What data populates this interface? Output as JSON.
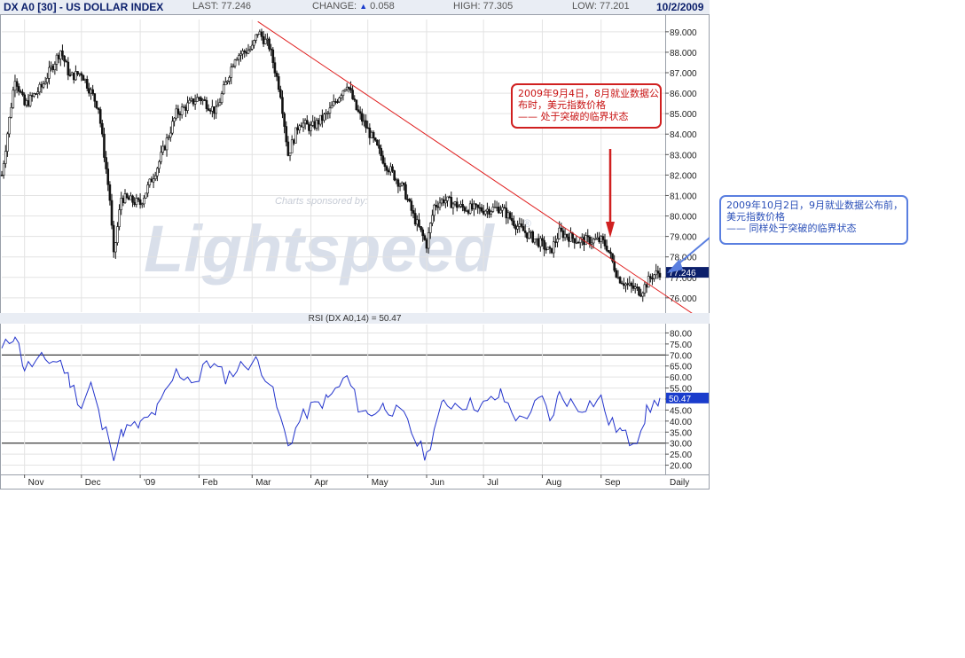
{
  "header": {
    "symbol": "DX A0 [30] - US DOLLAR INDEX",
    "last": "LAST: 77.246",
    "change_label": "CHANGE:",
    "change_value": "0.058",
    "high": "HIGH: 77.305",
    "low": "LOW: 77.201",
    "date": "10/2/2009"
  },
  "annotations": {
    "sep": [
      "2009年9月4日，8月就业数据公",
      "布时，美元指数价格",
      "—— 处于突破的临界状态"
    ],
    "oct": [
      "2009年10月2日，9月就业数据公布前，",
      "美元指数价格",
      "—— 同样处于突破的临界状态"
    ]
  },
  "watermark": {
    "sponsored": "Charts sponsored by:",
    "brand": "Lightspeed",
    "mark": "®"
  },
  "colors": {
    "price": "#111111",
    "rsi": "#2233cc",
    "trendline": "#e02020",
    "grid": "#e3e3e3",
    "last_badge": "#0b1f6b",
    "rsi_badge": "#1a3ccc",
    "annotation_red": "#d02020",
    "annotation_blue": "#5a7fe0"
  },
  "chart_data": [
    {
      "type": "candlestick",
      "name": "price",
      "ylim": [
        75.3,
        89.6
      ],
      "yticks": [
        76,
        77,
        78,
        79,
        80,
        81,
        82,
        83,
        84,
        85,
        86,
        87,
        88,
        89
      ],
      "ytick_labels": [
        "76.000",
        "77.000",
        "78.000",
        "79.000",
        "80.000",
        "81.000",
        "82.000",
        "83.000",
        "84.000",
        "85.000",
        "86.000",
        "87.000",
        "88.000",
        "89.000"
      ],
      "last_value": "77.246",
      "x_months": [
        "Nov",
        "Dec",
        "'09",
        "Feb",
        "Mar",
        "Apr",
        "May",
        "Jun",
        "Jul",
        "Aug",
        "Sep"
      ],
      "x_right_label": "Daily",
      "date_range": [
        "2008-10-20",
        "2009-10-02"
      ],
      "x_tick_dates": [
        "2008-11-01",
        "2008-12-01",
        "2009-01-01",
        "2009-02-01",
        "2009-03-01",
        "2009-04-01",
        "2009-05-01",
        "2009-06-01",
        "2009-07-01",
        "2009-08-01",
        "2009-09-01"
      ],
      "closes_by_date": [
        [
          "2008-10-20",
          82.0
        ],
        [
          "2008-10-27",
          86.8
        ],
        [
          "2008-11-01",
          85.4
        ],
        [
          "2008-11-10",
          86.3
        ],
        [
          "2008-11-20",
          88.1
        ],
        [
          "2008-11-25",
          86.8
        ],
        [
          "2008-12-01",
          87.0
        ],
        [
          "2008-12-10",
          85.3
        ],
        [
          "2008-12-16",
          80.8
        ],
        [
          "2008-12-18",
          78.0
        ],
        [
          "2008-12-22",
          80.9
        ],
        [
          "2009-01-01",
          80.6
        ],
        [
          "2009-01-10",
          82.4
        ],
        [
          "2009-01-20",
          85.0
        ],
        [
          "2009-02-01",
          85.8
        ],
        [
          "2009-02-10",
          85.1
        ],
        [
          "2009-02-20",
          87.8
        ],
        [
          "2009-03-01",
          88.2
        ],
        [
          "2009-03-04",
          89.0
        ],
        [
          "2009-03-10",
          88.3
        ],
        [
          "2009-03-16",
          86.0
        ],
        [
          "2009-03-20",
          83.0
        ],
        [
          "2009-03-26",
          84.6
        ],
        [
          "2009-04-01",
          84.3
        ],
        [
          "2009-04-10",
          85.0
        ],
        [
          "2009-04-20",
          86.5
        ],
        [
          "2009-04-25",
          85.2
        ],
        [
          "2009-05-01",
          84.2
        ],
        [
          "2009-05-10",
          82.6
        ],
        [
          "2009-05-20",
          81.3
        ],
        [
          "2009-05-25",
          80.0
        ],
        [
          "2009-06-01",
          78.6
        ],
        [
          "2009-06-05",
          80.5
        ],
        [
          "2009-06-10",
          80.8
        ],
        [
          "2009-06-20",
          80.4
        ],
        [
          "2009-07-01",
          80.3
        ],
        [
          "2009-07-10",
          80.4
        ],
        [
          "2009-07-20",
          79.4
        ],
        [
          "2009-08-01",
          78.6
        ],
        [
          "2009-08-05",
          78.2
        ],
        [
          "2009-08-10",
          79.2
        ],
        [
          "2009-08-20",
          78.8
        ],
        [
          "2009-09-01",
          78.8
        ],
        [
          "2009-09-04",
          78.5
        ],
        [
          "2009-09-10",
          77.0
        ],
        [
          "2009-09-15",
          76.6
        ],
        [
          "2009-09-22",
          76.3
        ],
        [
          "2009-09-28",
          77.1
        ],
        [
          "2009-10-02",
          77.25
        ]
      ],
      "trendline": [
        [
          "2009-03-04",
          89.5
        ],
        [
          "2009-10-02",
          76.3
        ]
      ]
    },
    {
      "type": "line",
      "name": "rsi",
      "title": "RSI (DX A0,14) = 50.47",
      "ylim": [
        17,
        83
      ],
      "yticks": [
        20,
        25,
        30,
        35,
        40,
        45,
        50,
        55,
        60,
        65,
        70,
        75,
        80
      ],
      "ytick_labels": [
        "20.00",
        "25.00",
        "30.00",
        "35.00",
        "40.00",
        "45.00",
        "50.00",
        "55.00",
        "60.00",
        "65.00",
        "70.00",
        "75.00",
        "80.00"
      ],
      "reference_lines": [
        70,
        30
      ],
      "last_value": "50.47",
      "points_by_date": [
        [
          "2008-10-20",
          72
        ],
        [
          "2008-10-27",
          80
        ],
        [
          "2008-11-01",
          64
        ],
        [
          "2008-11-10",
          68
        ],
        [
          "2008-11-20",
          67
        ],
        [
          "2008-11-25",
          58
        ],
        [
          "2008-12-01",
          47
        ],
        [
          "2008-12-06",
          57
        ],
        [
          "2008-12-12",
          37
        ],
        [
          "2008-12-16",
          33
        ],
        [
          "2008-12-18",
          25
        ],
        [
          "2008-12-23",
          36
        ],
        [
          "2009-01-01",
          38
        ],
        [
          "2009-01-10",
          45
        ],
        [
          "2009-01-20",
          62
        ],
        [
          "2009-02-01",
          58
        ],
        [
          "2009-02-05",
          68
        ],
        [
          "2009-02-15",
          60
        ],
        [
          "2009-02-25",
          66
        ],
        [
          "2009-03-04",
          67
        ],
        [
          "2009-03-10",
          58
        ],
        [
          "2009-03-20",
          29
        ],
        [
          "2009-03-26",
          40
        ],
        [
          "2009-04-01",
          46
        ],
        [
          "2009-04-10",
          50
        ],
        [
          "2009-04-20",
          60
        ],
        [
          "2009-04-26",
          47
        ],
        [
          "2009-05-01",
          43
        ],
        [
          "2009-05-10",
          47
        ],
        [
          "2009-05-20",
          42
        ],
        [
          "2009-05-27",
          30
        ],
        [
          "2009-06-01",
          24
        ],
        [
          "2009-06-05",
          37
        ],
        [
          "2009-06-10",
          48
        ],
        [
          "2009-06-20",
          48
        ],
        [
          "2009-07-01",
          47
        ],
        [
          "2009-07-10",
          52
        ],
        [
          "2009-07-20",
          40
        ],
        [
          "2009-08-01",
          50
        ],
        [
          "2009-08-05",
          40
        ],
        [
          "2009-08-10",
          52
        ],
        [
          "2009-08-20",
          46
        ],
        [
          "2009-09-01",
          50
        ],
        [
          "2009-09-05",
          40
        ],
        [
          "2009-09-12",
          35
        ],
        [
          "2009-09-16",
          31
        ],
        [
          "2009-09-20",
          33
        ],
        [
          "2009-09-25",
          44
        ],
        [
          "2009-10-02",
          50.47
        ]
      ]
    }
  ]
}
